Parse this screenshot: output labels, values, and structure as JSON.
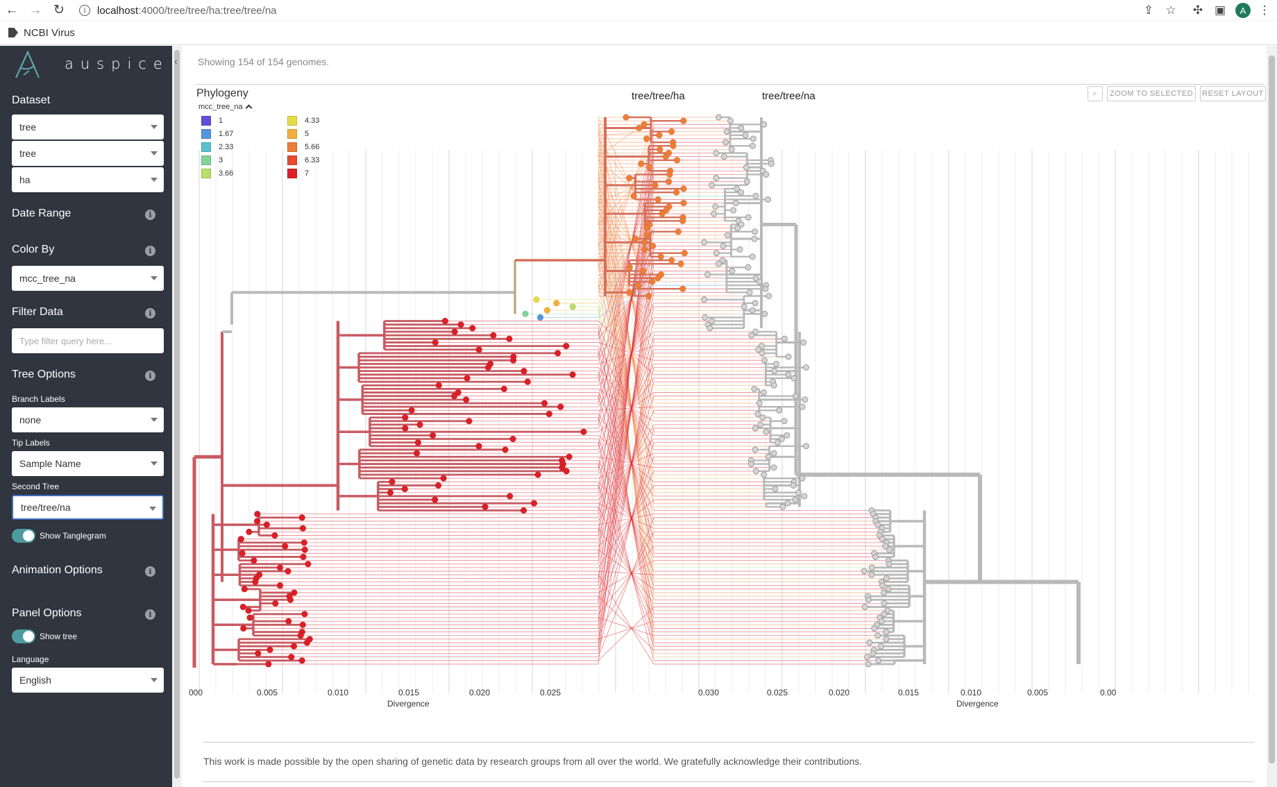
{
  "browser": {
    "url_host": "localhost",
    "url_path": ":4000/tree/tree/ha:tree/tree/na",
    "bookmark": "NCBI Virus",
    "avatar_letter": "A"
  },
  "sidebar": {
    "logo_text": "auspice",
    "dataset": {
      "header": "Dataset",
      "values": [
        "tree",
        "tree",
        "ha"
      ]
    },
    "date_range": {
      "header": "Date Range"
    },
    "color_by": {
      "header": "Color By",
      "value": "mcc_tree_na"
    },
    "filter": {
      "header": "Filter Data",
      "placeholder": "Type filter query here..."
    },
    "tree_options": {
      "header": "Tree Options",
      "branch_labels_label": "Branch Labels",
      "branch_labels_value": "none",
      "tip_labels_label": "Tip Labels",
      "tip_labels_value": "Sample Name",
      "second_tree_label": "Second Tree",
      "second_tree_value": "tree/tree/na",
      "tanglegram_label": "Show Tanglegram"
    },
    "animation": {
      "header": "Animation Options"
    },
    "panel": {
      "header": "Panel Options",
      "show_tree_label": "Show tree"
    },
    "language": {
      "label": "Language",
      "value": "English"
    }
  },
  "main": {
    "genome_count": "Showing 154 of 154 genomes.",
    "panel_title": "Phylogeny",
    "tree_left_label": "tree/tree/ha",
    "tree_right_label": "tree/tree/na",
    "zoom_to_selected": "ZOOM TO SELECTED",
    "reset_layout": "RESET LAYOUT",
    "legend_title": "mcc_tree_na",
    "legend": [
      {
        "label": "1",
        "color": "#5c52d8"
      },
      {
        "label": "1.67",
        "color": "#5595e0"
      },
      {
        "label": "2.33",
        "color": "#5cc0cc"
      },
      {
        "label": "3",
        "color": "#82d39a"
      },
      {
        "label": "3.66",
        "color": "#b9de6a"
      },
      {
        "label": "4.33",
        "color": "#e5dc47"
      },
      {
        "label": "5",
        "color": "#f0b03e"
      },
      {
        "label": "5.66",
        "color": "#ee7d37"
      },
      {
        "label": "6.33",
        "color": "#e64a2f"
      },
      {
        "label": "7",
        "color": "#dc1f26"
      }
    ],
    "axis_left": {
      "label": "Divergence",
      "ticks": [
        "000",
        "0.005",
        "0.010",
        "0.015",
        "0.020",
        "0.025"
      ]
    },
    "axis_right": {
      "label": "Divergence",
      "ticks": [
        "0.030",
        "0.025",
        "0.020",
        "0.015",
        "0.010",
        "0.005",
        "0.00"
      ]
    },
    "footer": "This work is made possible by the open sharing of genetic data by research groups from all over the world. We gratefully acknowledge their contributions."
  }
}
